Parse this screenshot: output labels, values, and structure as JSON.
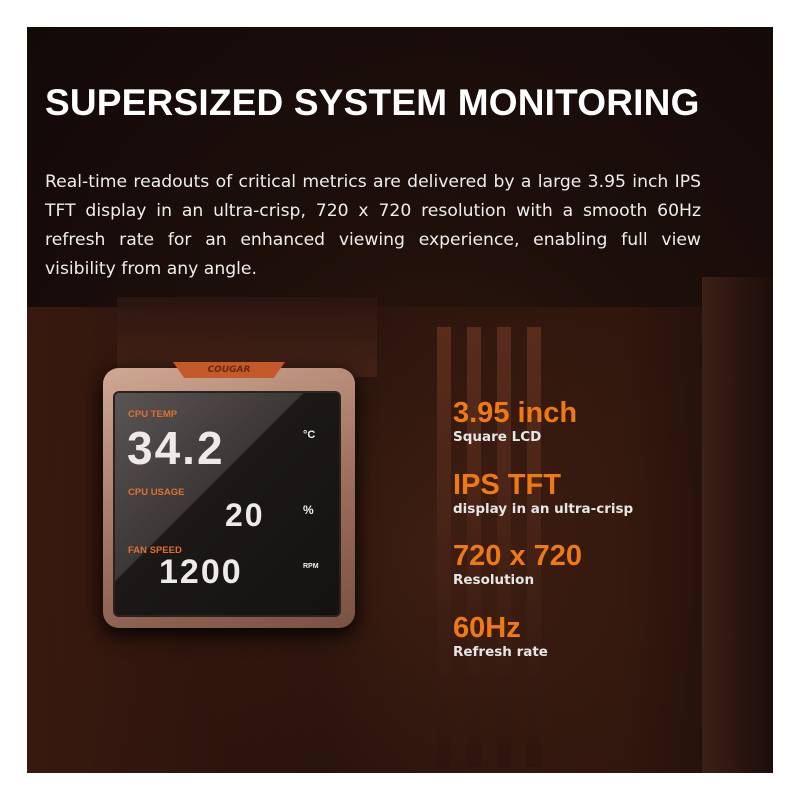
{
  "heading": "SUPERSIZED SYSTEM MONITORING",
  "description": "Real-time readouts of critical metrics are delivered by a large 3.95 inch IPS TFT display in an ultra-crisp, 720 x 720 resolution with a smooth 60Hz refresh rate for an enhanced viewing experience, enabling full view visibility from any angle.",
  "device": {
    "brand": "COUGAR",
    "cpu_temp_label": "CPU TEMP",
    "cpu_temp_value": "34.2",
    "cpu_temp_unit": "°C",
    "cpu_usage_label": "CPU USAGE",
    "cpu_usage_value": "20",
    "cpu_usage_unit": "%",
    "fan_speed_label": "FAN SPEED",
    "fan_speed_value": "1200",
    "fan_speed_unit": "RPM"
  },
  "specs": [
    {
      "headline": "3.95 inch",
      "sub": "Square LCD"
    },
    {
      "headline": "IPS TFT",
      "sub": "display in an ultra-crisp"
    },
    {
      "headline": "720 x 720",
      "sub": "Resolution"
    },
    {
      "headline": "60Hz",
      "sub": "Refresh rate"
    }
  ],
  "colors": {
    "accent": "#f07a12",
    "label_orange": "#e0702e"
  }
}
